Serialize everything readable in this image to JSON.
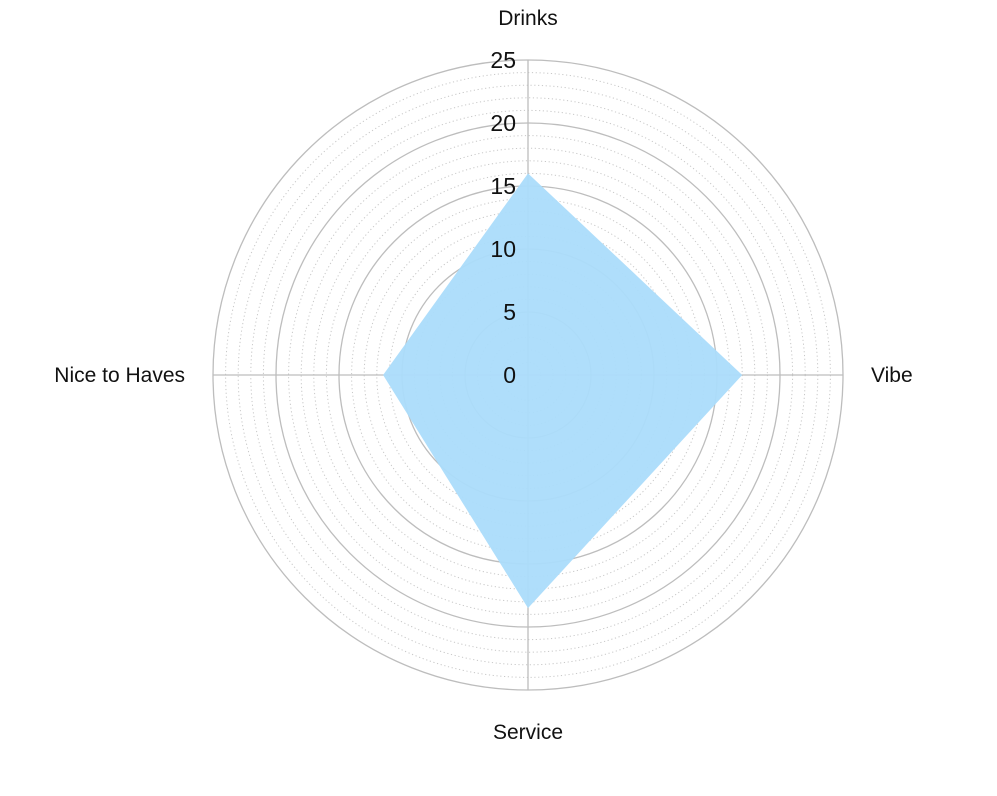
{
  "chart_data": {
    "type": "radar",
    "axes": [
      "Drinks",
      "Vibe",
      "Service",
      "Nice to Haves"
    ],
    "series": [
      {
        "values": [
          16,
          17,
          18.5,
          11.5
        ],
        "color": "#abdcfb"
      }
    ],
    "rlim": [
      0,
      25
    ],
    "major_ticks": [
      0,
      5,
      10,
      15,
      20,
      25
    ],
    "minor_step": 1,
    "grid": true,
    "legend": false,
    "colors": {
      "major_grid": "#bdbdbd",
      "minor_grid": "#c8c8c8",
      "fill": "#abdcfb"
    }
  }
}
